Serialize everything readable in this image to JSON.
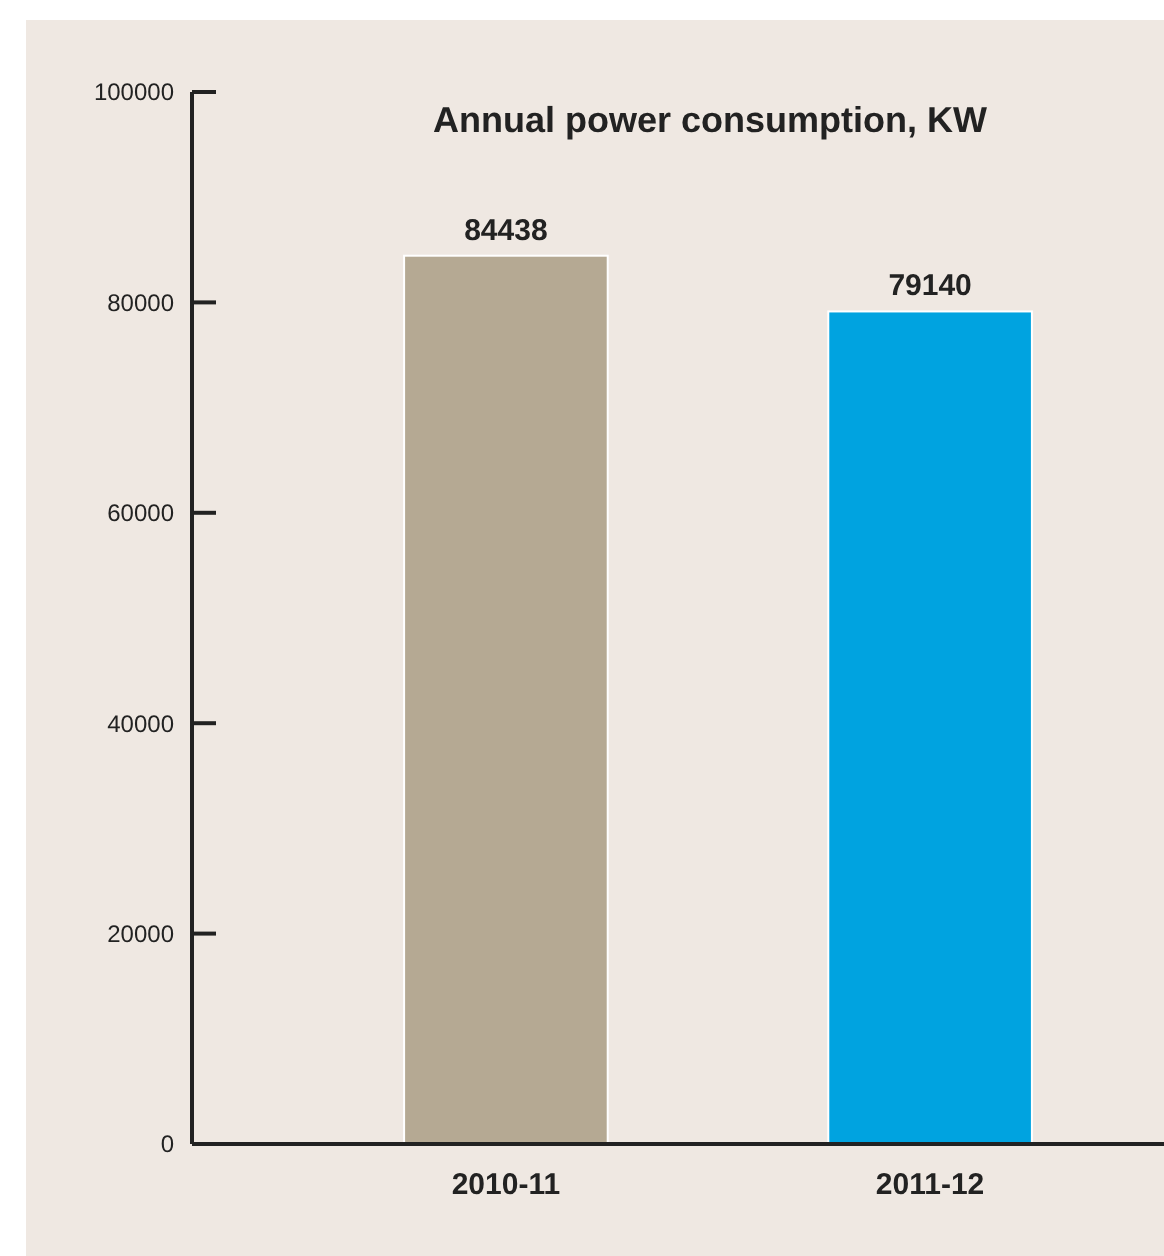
{
  "chart_data": {
    "type": "bar",
    "title": "Annual power consumption, KW",
    "categories": [
      "2010-11",
      "2011-12"
    ],
    "values": [
      84438,
      79140
    ],
    "colors": [
      "#b5a993",
      "#00a3e0"
    ],
    "ylim": [
      0,
      100000
    ],
    "yticks": [
      0,
      20000,
      40000,
      60000,
      80000,
      100000
    ],
    "data_labels": true
  }
}
